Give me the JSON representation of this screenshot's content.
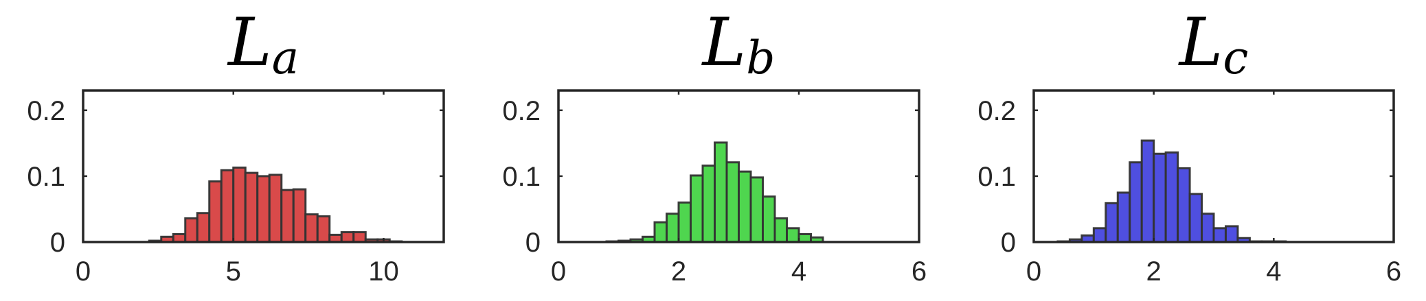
{
  "chart_data": [
    {
      "type": "bar",
      "title": "L",
      "title_subscript": "a",
      "color": "#d94a4a",
      "xlim": [
        0,
        12
      ],
      "ylim": [
        0,
        0.23
      ],
      "xticks": [
        0,
        5,
        10
      ],
      "xtick_labels": [
        "0",
        "5",
        "10"
      ],
      "yticks": [
        0,
        0.1,
        0.2
      ],
      "ytick_labels": [
        "0",
        "0.1",
        "0.2"
      ],
      "bin_width": 0.4,
      "bin_edges_start": 2.2,
      "values": [
        0.002,
        0.008,
        0.012,
        0.036,
        0.044,
        0.092,
        0.109,
        0.113,
        0.105,
        0.1,
        0.102,
        0.079,
        0.08,
        0.042,
        0.039,
        0.011,
        0.015,
        0.015,
        0.004,
        0.004,
        0.001
      ]
    },
    {
      "type": "bar",
      "title": "L",
      "title_subscript": "b",
      "color": "#4fd64f",
      "xlim": [
        0,
        6
      ],
      "ylim": [
        0,
        0.23
      ],
      "xticks": [
        0,
        2,
        4,
        6
      ],
      "xtick_labels": [
        "0",
        "2",
        "4",
        "6"
      ],
      "yticks": [
        0,
        0.1,
        0.2
      ],
      "yticks_labels_note": "",
      "ytick_labels": [
        "0",
        "0.1",
        "0.2"
      ],
      "bin_width": 0.2,
      "bin_edges_start": 0.8,
      "values": [
        0.001,
        0.002,
        0.004,
        0.008,
        0.03,
        0.043,
        0.06,
        0.101,
        0.116,
        0.151,
        0.121,
        0.107,
        0.098,
        0.069,
        0.036,
        0.021,
        0.012,
        0.007
      ]
    },
    {
      "type": "bar",
      "title": "L",
      "title_subscript": "c",
      "color": "#4f4fe0",
      "xlim": [
        0,
        6
      ],
      "ylim": [
        0,
        0.23
      ],
      "xticks": [
        0,
        2,
        4,
        6
      ],
      "xtick_labels": [
        "0",
        "2",
        "4",
        "6"
      ],
      "yticks": [
        0,
        0.1,
        0.2
      ],
      "ytick_labels": [
        "0",
        "0.1",
        "0.2"
      ],
      "bin_width": 0.2,
      "bin_edges_start": 0.4,
      "values": [
        0.001,
        0.004,
        0.01,
        0.021,
        0.059,
        0.075,
        0.121,
        0.154,
        0.134,
        0.136,
        0.112,
        0.073,
        0.043,
        0.021,
        0.024,
        0.006,
        0.001,
        0.001,
        0.001
      ]
    }
  ]
}
